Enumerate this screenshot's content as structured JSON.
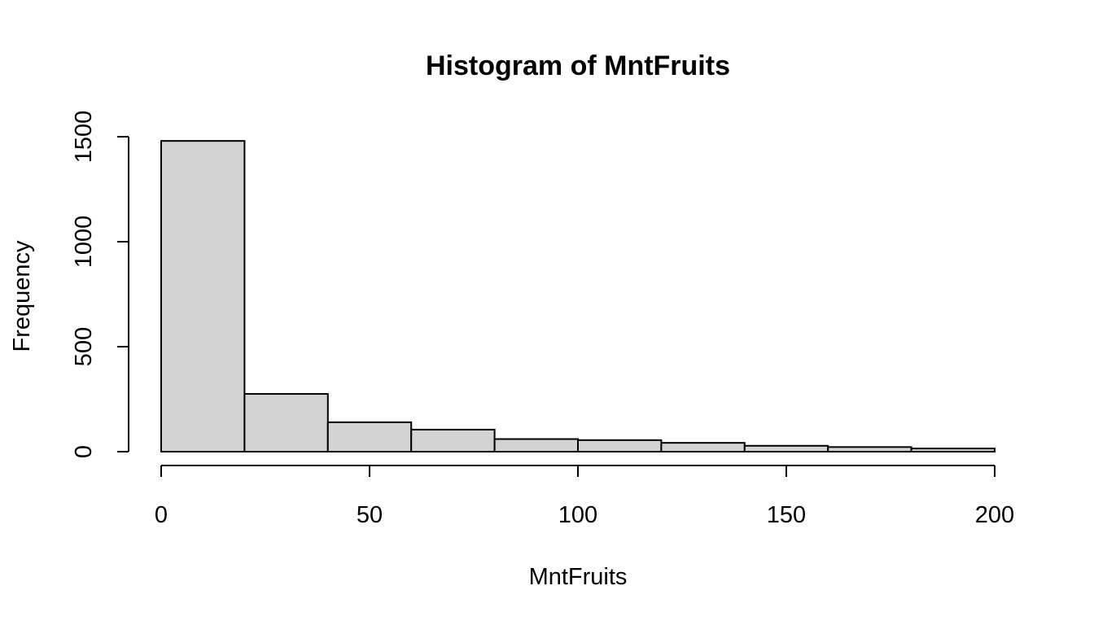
{
  "chart_data": {
    "type": "bar",
    "title": "Histogram of MntFruits",
    "xlabel": "MntFruits",
    "ylabel": "Frequency",
    "bin_edges": [
      0,
      20,
      40,
      60,
      80,
      100,
      120,
      140,
      160,
      180,
      200
    ],
    "values": [
      1480,
      275,
      140,
      105,
      60,
      55,
      42,
      28,
      22,
      15
    ],
    "xlim": [
      0,
      200
    ],
    "ylim": [
      0,
      1500
    ],
    "x_ticks": [
      0,
      50,
      100,
      150,
      200
    ],
    "y_ticks": [
      0,
      500,
      1000,
      1500
    ],
    "bar_fill": "#d3d3d3",
    "bar_stroke": "#000000",
    "grid": false
  }
}
